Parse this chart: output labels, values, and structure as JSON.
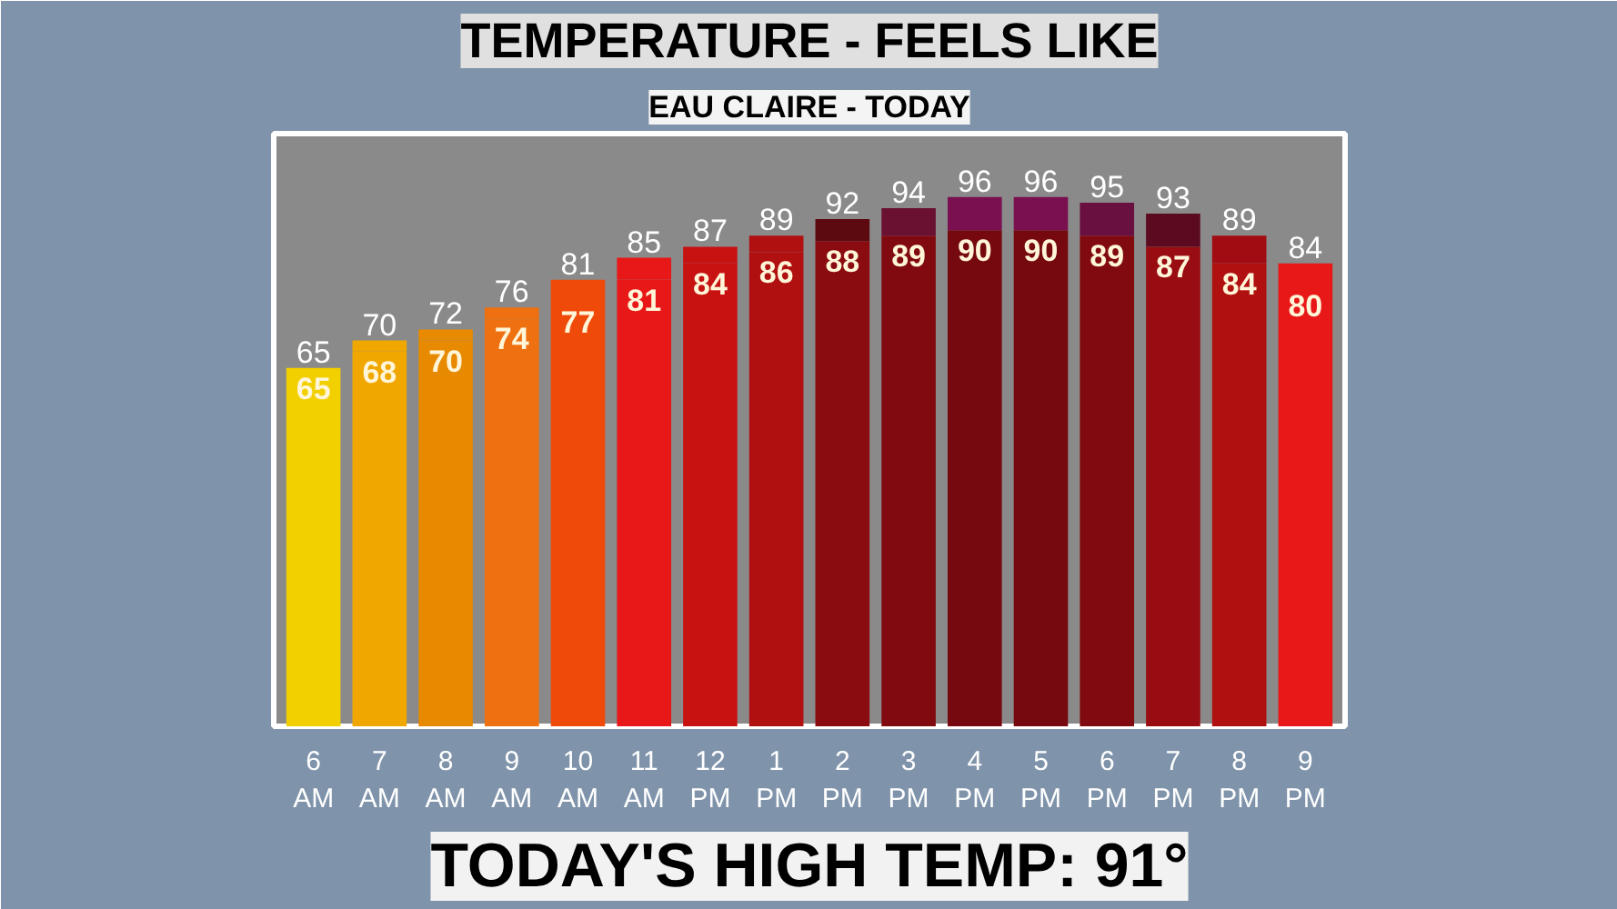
{
  "chart_data": {
    "type": "bar",
    "title": "TEMPERATURE - FEELS LIKE",
    "subtitle": "EAU CLAIRE - TODAY",
    "annotations": [
      "TODAY'S HIGH TEMP: 91°"
    ],
    "categories": [
      "6 AM",
      "7 AM",
      "8 AM",
      "9 AM",
      "10 AM",
      "11 AM",
      "12 PM",
      "1 PM",
      "2 PM",
      "3 PM",
      "4 PM",
      "5 PM",
      "6 PM",
      "7 PM",
      "8 PM",
      "9 PM"
    ],
    "stacked": true,
    "series": [
      {
        "values": [
          65,
          68,
          70,
          74,
          77,
          81,
          84,
          86,
          88,
          89,
          90,
          90,
          89,
          87,
          84,
          80
        ],
        "value_labels": [
          "65",
          "68",
          "70",
          "74",
          "77",
          "81",
          "84",
          "86",
          "88",
          "89",
          "90",
          "90",
          "89",
          "87",
          "84",
          "80"
        ],
        "colors": [
          "#f2d000",
          "#f0a800",
          "#e88a00",
          "#ee7010",
          "#f04a0a",
          "#e81818",
          "#c81212",
          "#b01010",
          "#8a0c10",
          "#800a10",
          "#760810",
          "#760810",
          "#800a10",
          "#980c12",
          "#b01010",
          "#e81818"
        ]
      },
      {
        "values": [
          0,
          2,
          2,
          2,
          4,
          4,
          3,
          3,
          4,
          5,
          6,
          6,
          6,
          6,
          5,
          4
        ],
        "colors": [
          "#f2d000",
          "#f0a800",
          "#e88a00",
          "#ee7010",
          "#f04a0a",
          "#e81818",
          "#c81212",
          "#b01010",
          "#5c0a10",
          "#6a1030",
          "#7a1050",
          "#7a1050",
          "#6a1040",
          "#5c0a20",
          "#a00c12",
          "#e81818"
        ]
      }
    ],
    "totals": [
      "65",
      "70",
      "72",
      "76",
      "81",
      "85",
      "87",
      "89",
      "92",
      "94",
      "96",
      "96",
      "95",
      "93",
      "89",
      "84"
    ],
    "grid": false
  }
}
